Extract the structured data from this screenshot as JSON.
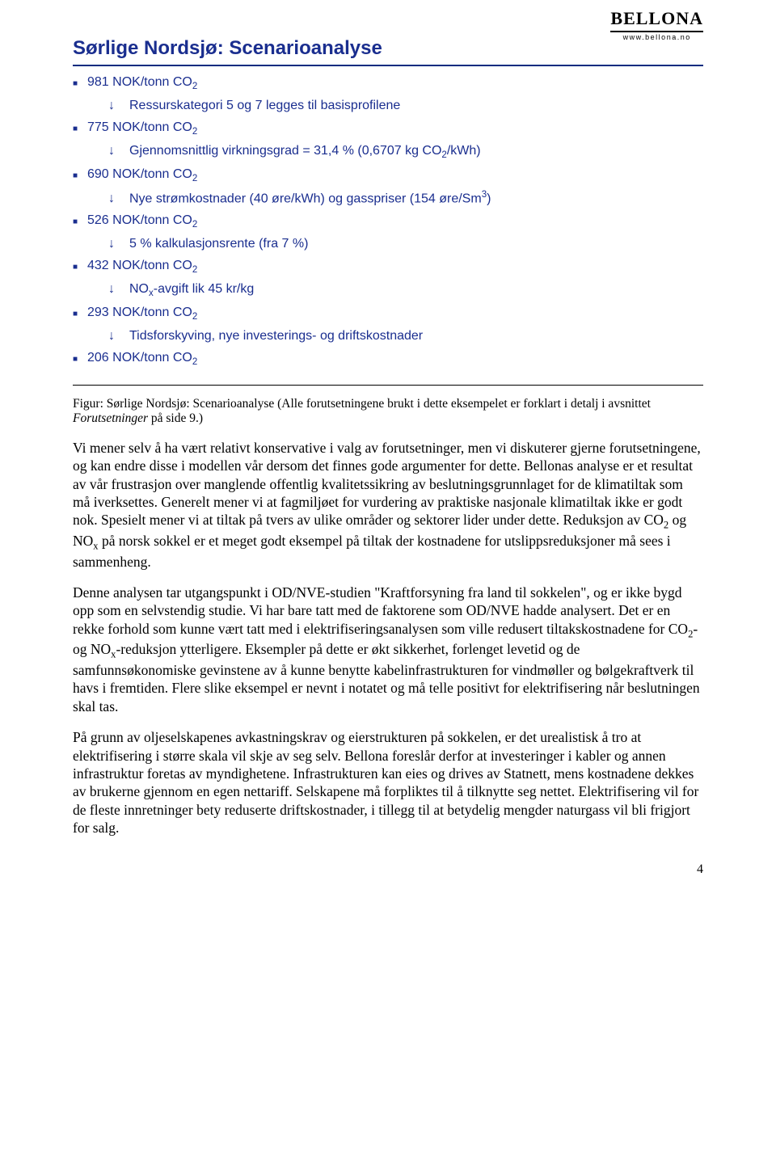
{
  "logo": {
    "brand": "BELLONA",
    "url": "www.bellona.no"
  },
  "slide": {
    "title": "Sørlige Nordsjø: Scenarioanalyse",
    "items": [
      {
        "value": "981 NOK/tonn CO",
        "sub": "2",
        "step": "Ressurskategori 5 og 7 legges til basisprofilene"
      },
      {
        "value": "775 NOK/tonn CO",
        "sub": "2",
        "step": "Gjennomsnittlig virkningsgrad = 31,4 % (0,6707 kg CO",
        "step_sub": "2",
        "step_tail": "/kWh)"
      },
      {
        "value": "690 NOK/tonn CO",
        "sub": "2",
        "step": "Nye strømkostnader (40 øre/kWh) og gasspriser (154 øre/Sm",
        "step_sup": "3",
        "step_tail": ")"
      },
      {
        "value": "526 NOK/tonn CO",
        "sub": "2",
        "step": "5 % kalkulasjonsrente (fra 7 %)"
      },
      {
        "value": "432 NOK/tonn CO",
        "sub": "2",
        "step": "NO",
        "step_sub_inline": "x",
        "step_mid": "-avgift lik 45 kr/kg"
      },
      {
        "value": "293 NOK/tonn CO",
        "sub": "2",
        "step": "Tidsforskyving, nye investerings- og driftskostnader"
      },
      {
        "value": "206 NOK/tonn CO",
        "sub": "2"
      }
    ]
  },
  "caption": {
    "prefix": "Figur: Sørlige Nordsjø: Scenarioanalyse (Alle forutsetningene brukt i dette eksempelet er forklart i detalj i avsnittet ",
    "italic": "Forutsetninger",
    "suffix": " på side 9.)"
  },
  "paragraphs": {
    "p1a": "Vi mener selv å ha vært relativt konservative i valg av forutsetninger, men vi diskuterer gjerne forutsetningene, og kan endre disse i modellen vår dersom det finnes gode argumenter for dette. Bellonas analyse er et resultat av vår frustrasjon over manglende offentlig kvalitetssikring av beslutningsgrunnlaget for de klimatiltak som må iverksettes. Generelt mener vi at fagmiljøet for vurdering av praktiske nasjonale klimatiltak ikke er godt nok. Spesielt mener vi at tiltak på tvers av ulike områder og sektorer lider under dette. Reduksjon av CO",
    "p1b": " og NO",
    "p1c": " på norsk sokkel er et meget godt eksempel på tiltak der kostnadene for utslippsreduksjoner må sees i sammenheng.",
    "p2a": "Denne analysen tar utgangspunkt i OD/NVE-studien \"Kraftforsyning fra land til sokkelen\", og er ikke bygd opp som en selvstendig studie. Vi har bare tatt med de faktorene som OD/NVE hadde analysert.  Det er en rekke forhold som kunne vært tatt med i elektrifiseringsanalysen som ville redusert tiltakskostnadene for CO",
    "p2b": "- og NO",
    "p2c": "-reduksjon ytterligere. Eksempler på dette er økt sikkerhet, forlenget levetid og de samfunnsøkonomiske gevinstene av å kunne benytte kabelinfrastrukturen for vindmøller og bølgekraftverk til havs i fremtiden. Flere slike eksempel er nevnt i notatet og må telle positivt for elektrifisering når beslutningen skal tas.",
    "p3": "På grunn av oljeselskapenes avkastningskrav og eierstrukturen på sokkelen, er det urealistisk å tro at elektrifisering i større skala vil skje av seg selv. Bellona foreslår derfor at investeringer i kabler og annen infrastruktur foretas av myndighetene. Infrastrukturen kan eies og drives av Statnett, mens kostnadene dekkes av brukerne gjennom en egen nettariff. Selskapene må forpliktes til å tilknytte seg nettet. Elektrifisering vil for de fleste innretninger bety reduserte driftskostnader, i tillegg til at betydelig mengder naturgass vil bli frigjort for salg."
  },
  "pageNumber": "4",
  "glyphs": {
    "bullet": "■",
    "downArrow": "↓"
  },
  "colors": {
    "brand_blue": "#1a2e8f"
  }
}
